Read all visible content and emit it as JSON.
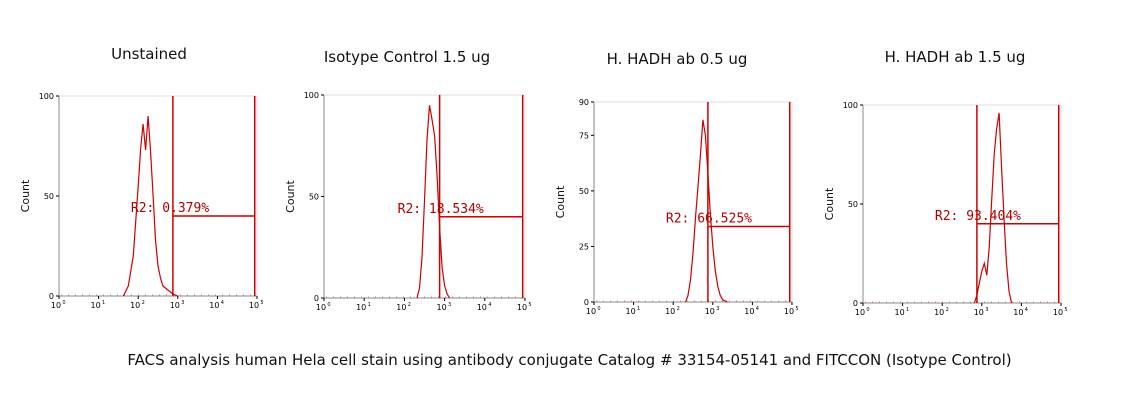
{
  "colors": {
    "histogram": "#cc0000",
    "gate_text": "#b00000",
    "axis": "#000000",
    "text": "#111111",
    "background": "#ffffff"
  },
  "caption": "FACS analysis human Hela cell stain using antibody conjugate Catalog # 33154-05141 and FITCCON (Isotype Control)",
  "chart_data": [
    {
      "type": "area",
      "title": "Unstained",
      "ylabel": "Count",
      "xscale": "log",
      "xlim": [
        1,
        10000
      ],
      "ylim": [
        0,
        100
      ],
      "yticks": [
        0,
        50,
        100
      ],
      "xtick_labels": [
        "10",
        "10",
        "10",
        "10",
        "10",
        "10"
      ],
      "histogram": {
        "log_x": [
          1.3,
          1.4,
          1.5,
          1.6,
          1.65,
          1.7,
          1.75,
          1.8,
          1.85,
          1.9,
          1.95,
          2.0,
          2.05,
          2.1,
          2.2,
          2.3,
          2.4
        ],
        "counts": [
          0,
          5,
          20,
          55,
          74,
          86,
          73,
          90,
          72,
          50,
          28,
          15,
          9,
          5,
          3,
          1,
          0
        ]
      },
      "gate": {
        "label": "R2: 0.379%",
        "x_start": 200,
        "x_end": 9000,
        "level": 40
      }
    },
    {
      "type": "area",
      "title": "Isotype Control 1.5 ug",
      "ylabel": "Count",
      "xscale": "log",
      "xlim": [
        1,
        10000
      ],
      "ylim": [
        0,
        100
      ],
      "yticks": [
        0,
        50,
        100
      ],
      "xtick_labels": [
        "10",
        "10",
        "10",
        "10",
        "10",
        "10"
      ],
      "histogram": {
        "log_x": [
          1.85,
          1.9,
          1.95,
          2.0,
          2.05,
          2.1,
          2.15,
          2.2,
          2.25,
          2.3,
          2.35,
          2.4,
          2.45,
          2.5
        ],
        "counts": [
          0,
          5,
          20,
          48,
          78,
          95,
          88,
          80,
          60,
          35,
          15,
          6,
          2,
          0
        ]
      },
      "gate": {
        "label": "R2: 18.534%",
        "x_start": 200,
        "x_end": 9000,
        "level": 40
      }
    },
    {
      "type": "area",
      "title": "H. HADH ab 0.5 ug",
      "ylabel": "Count",
      "xscale": "log",
      "xlim": [
        1,
        10000
      ],
      "ylim": [
        0,
        90
      ],
      "yticks": [
        0,
        25,
        50,
        75,
        90
      ],
      "xtick_labels": [
        "10",
        "10",
        "10",
        "10",
        "10",
        "10"
      ],
      "histogram": {
        "log_x": [
          1.85,
          1.9,
          1.95,
          2.0,
          2.05,
          2.1,
          2.15,
          2.2,
          2.25,
          2.3,
          2.35,
          2.4,
          2.45,
          2.5,
          2.55,
          2.6,
          2.7
        ],
        "counts": [
          0,
          3,
          10,
          22,
          38,
          52,
          66,
          82,
          75,
          58,
          40,
          25,
          14,
          7,
          3,
          1,
          0
        ]
      },
      "gate": {
        "label": "R2: 66.525%",
        "x_start": 200,
        "x_end": 9000,
        "level": 34
      }
    },
    {
      "type": "area",
      "title": "H. HADH ab 1.5 ug",
      "ylabel": "Count",
      "xscale": "log",
      "xlim": [
        1,
        10000
      ],
      "ylim": [
        0,
        100
      ],
      "yticks": [
        0,
        50,
        100
      ],
      "xtick_labels": [
        "10",
        "10",
        "10",
        "10",
        "10",
        "10"
      ],
      "histogram": {
        "log_x": [
          2.25,
          2.3,
          2.35,
          2.4,
          2.45,
          2.5,
          2.55,
          2.6,
          2.65,
          2.7,
          2.75,
          2.8,
          2.85,
          2.9,
          2.95,
          3.0
        ],
        "counts": [
          0,
          4,
          10,
          16,
          20,
          14,
          28,
          52,
          75,
          88,
          96,
          68,
          42,
          20,
          6,
          0
        ]
      },
      "gate": {
        "label": "R2: 93.404%",
        "x_start": 200,
        "x_end": 9000,
        "level": 40
      }
    }
  ]
}
